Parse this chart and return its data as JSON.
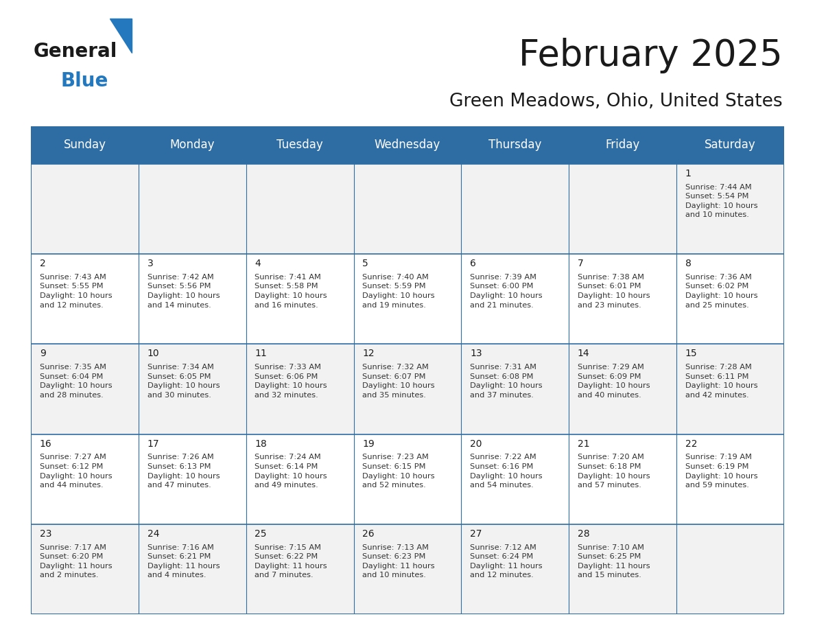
{
  "title": "February 2025",
  "subtitle": "Green Meadows, Ohio, United States",
  "header_bg": "#2E6DA4",
  "header_text_color": "#FFFFFF",
  "cell_bg_odd": "#F2F2F2",
  "cell_bg_even": "#FFFFFF",
  "border_color": "#2E6DA4",
  "day_name_color": "#1A1A1A",
  "cell_text_color": "#333333",
  "day_number_color": "#1A1A1A",
  "days_of_week": [
    "Sunday",
    "Monday",
    "Tuesday",
    "Wednesday",
    "Thursday",
    "Friday",
    "Saturday"
  ],
  "weeks": [
    [
      {
        "day": null,
        "info": null
      },
      {
        "day": null,
        "info": null
      },
      {
        "day": null,
        "info": null
      },
      {
        "day": null,
        "info": null
      },
      {
        "day": null,
        "info": null
      },
      {
        "day": null,
        "info": null
      },
      {
        "day": 1,
        "info": "Sunrise: 7:44 AM\nSunset: 5:54 PM\nDaylight: 10 hours\nand 10 minutes."
      }
    ],
    [
      {
        "day": 2,
        "info": "Sunrise: 7:43 AM\nSunset: 5:55 PM\nDaylight: 10 hours\nand 12 minutes."
      },
      {
        "day": 3,
        "info": "Sunrise: 7:42 AM\nSunset: 5:56 PM\nDaylight: 10 hours\nand 14 minutes."
      },
      {
        "day": 4,
        "info": "Sunrise: 7:41 AM\nSunset: 5:58 PM\nDaylight: 10 hours\nand 16 minutes."
      },
      {
        "day": 5,
        "info": "Sunrise: 7:40 AM\nSunset: 5:59 PM\nDaylight: 10 hours\nand 19 minutes."
      },
      {
        "day": 6,
        "info": "Sunrise: 7:39 AM\nSunset: 6:00 PM\nDaylight: 10 hours\nand 21 minutes."
      },
      {
        "day": 7,
        "info": "Sunrise: 7:38 AM\nSunset: 6:01 PM\nDaylight: 10 hours\nand 23 minutes."
      },
      {
        "day": 8,
        "info": "Sunrise: 7:36 AM\nSunset: 6:02 PM\nDaylight: 10 hours\nand 25 minutes."
      }
    ],
    [
      {
        "day": 9,
        "info": "Sunrise: 7:35 AM\nSunset: 6:04 PM\nDaylight: 10 hours\nand 28 minutes."
      },
      {
        "day": 10,
        "info": "Sunrise: 7:34 AM\nSunset: 6:05 PM\nDaylight: 10 hours\nand 30 minutes."
      },
      {
        "day": 11,
        "info": "Sunrise: 7:33 AM\nSunset: 6:06 PM\nDaylight: 10 hours\nand 32 minutes."
      },
      {
        "day": 12,
        "info": "Sunrise: 7:32 AM\nSunset: 6:07 PM\nDaylight: 10 hours\nand 35 minutes."
      },
      {
        "day": 13,
        "info": "Sunrise: 7:31 AM\nSunset: 6:08 PM\nDaylight: 10 hours\nand 37 minutes."
      },
      {
        "day": 14,
        "info": "Sunrise: 7:29 AM\nSunset: 6:09 PM\nDaylight: 10 hours\nand 40 minutes."
      },
      {
        "day": 15,
        "info": "Sunrise: 7:28 AM\nSunset: 6:11 PM\nDaylight: 10 hours\nand 42 minutes."
      }
    ],
    [
      {
        "day": 16,
        "info": "Sunrise: 7:27 AM\nSunset: 6:12 PM\nDaylight: 10 hours\nand 44 minutes."
      },
      {
        "day": 17,
        "info": "Sunrise: 7:26 AM\nSunset: 6:13 PM\nDaylight: 10 hours\nand 47 minutes."
      },
      {
        "day": 18,
        "info": "Sunrise: 7:24 AM\nSunset: 6:14 PM\nDaylight: 10 hours\nand 49 minutes."
      },
      {
        "day": 19,
        "info": "Sunrise: 7:23 AM\nSunset: 6:15 PM\nDaylight: 10 hours\nand 52 minutes."
      },
      {
        "day": 20,
        "info": "Sunrise: 7:22 AM\nSunset: 6:16 PM\nDaylight: 10 hours\nand 54 minutes."
      },
      {
        "day": 21,
        "info": "Sunrise: 7:20 AM\nSunset: 6:18 PM\nDaylight: 10 hours\nand 57 minutes."
      },
      {
        "day": 22,
        "info": "Sunrise: 7:19 AM\nSunset: 6:19 PM\nDaylight: 10 hours\nand 59 minutes."
      }
    ],
    [
      {
        "day": 23,
        "info": "Sunrise: 7:17 AM\nSunset: 6:20 PM\nDaylight: 11 hours\nand 2 minutes."
      },
      {
        "day": 24,
        "info": "Sunrise: 7:16 AM\nSunset: 6:21 PM\nDaylight: 11 hours\nand 4 minutes."
      },
      {
        "day": 25,
        "info": "Sunrise: 7:15 AM\nSunset: 6:22 PM\nDaylight: 11 hours\nand 7 minutes."
      },
      {
        "day": 26,
        "info": "Sunrise: 7:13 AM\nSunset: 6:23 PM\nDaylight: 11 hours\nand 10 minutes."
      },
      {
        "day": 27,
        "info": "Sunrise: 7:12 AM\nSunset: 6:24 PM\nDaylight: 11 hours\nand 12 minutes."
      },
      {
        "day": 28,
        "info": "Sunrise: 7:10 AM\nSunset: 6:25 PM\nDaylight: 11 hours\nand 15 minutes."
      },
      {
        "day": null,
        "info": null
      }
    ]
  ],
  "logo_general_color": "#1A1A1A",
  "logo_blue_color": "#2478BE",
  "title_fontsize": 38,
  "subtitle_fontsize": 19,
  "header_fontsize": 12,
  "day_num_fontsize": 10,
  "cell_text_fontsize": 8.2
}
